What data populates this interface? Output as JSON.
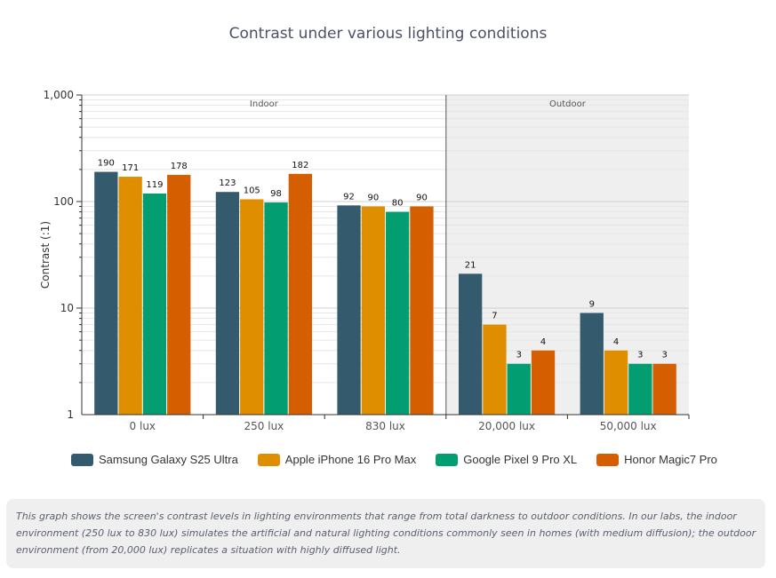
{
  "chart_data": {
    "type": "bar",
    "title": "Contrast under various lighting conditions",
    "ylabel": "Contrast (:1)",
    "yscale": "log",
    "ylim": [
      1,
      1000
    ],
    "yticks": [
      "1",
      "10",
      "100",
      "1,000"
    ],
    "categories": [
      "0 lux",
      "250 lux",
      "830 lux",
      "20,000 lux",
      "50,000 lux"
    ],
    "regions": [
      {
        "label": "Indoor",
        "from": 0,
        "to": 2
      },
      {
        "label": "Outdoor",
        "from": 3,
        "to": 4
      }
    ],
    "series": [
      {
        "name": "Samsung Galaxy S25 Ultra",
        "color": "#345a6d",
        "values": [
          190,
          123,
          92,
          21,
          9
        ]
      },
      {
        "name": "Apple iPhone 16 Pro Max",
        "color": "#df8e00",
        "values": [
          171,
          105,
          90,
          7,
          4
        ]
      },
      {
        "name": "Google Pixel 9 Pro XL",
        "color": "#029e72",
        "values": [
          119,
          98,
          80,
          3,
          3
        ]
      },
      {
        "name": "Honor Magic7 Pro",
        "color": "#d55f00",
        "values": [
          178,
          182,
          90,
          4,
          3
        ]
      }
    ],
    "legend": "bottom",
    "grid": true
  },
  "caption": "This graph shows the screen's contrast levels in lighting environments that range from total darkness to outdoor conditions. In our labs, the indoor environment (250 lux to 830 lux) simulates the artificial and natural lighting conditions commonly seen in homes (with medium diffusion); the outdoor environment (from 20,000 lux) replicates a situation with highly diffused light.",
  "colors": {
    "outdoor_background": "#efefef",
    "caption_background": "#efefef"
  }
}
